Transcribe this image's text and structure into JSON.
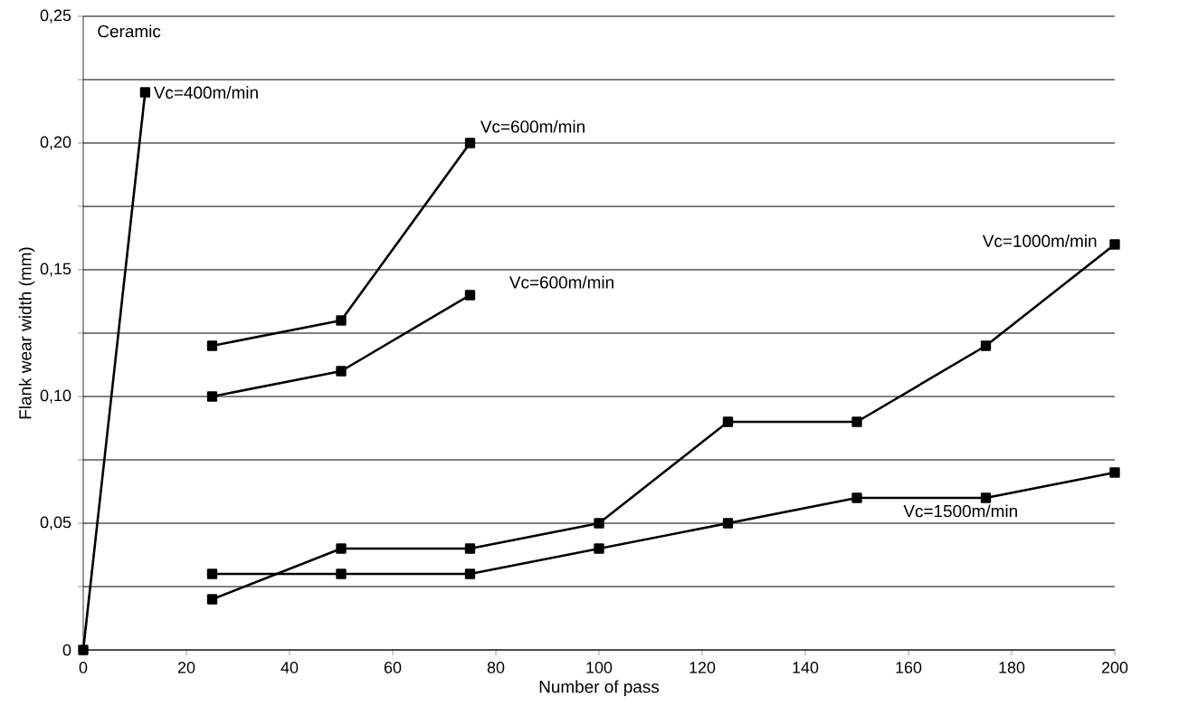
{
  "chart_data": {
    "type": "line",
    "xlabel": "Number of pass",
    "ylabel": "Flank wear width (mm)",
    "annotations": [
      "Ceramic"
    ],
    "series": [
      {
        "name": "Vc=400m/min",
        "color": "#000000",
        "x": [
          0,
          12
        ],
        "values": [
          0,
          0.22
        ]
      },
      {
        "name": "Vc=600m/min",
        "color": "#000000",
        "x": [
          25,
          50,
          75
        ],
        "values": [
          0.12,
          0.13,
          0.2
        ]
      },
      {
        "name": "Vc=600m/min",
        "color": "#000000",
        "x": [
          25,
          50,
          75
        ],
        "values": [
          0.1,
          0.11,
          0.14
        ]
      },
      {
        "name": "Vc=1000m/min",
        "color": "#000000",
        "x": [
          25,
          50,
          75,
          100,
          125,
          150,
          175,
          200
        ],
        "values": [
          0.02,
          0.04,
          0.04,
          0.05,
          0.09,
          0.09,
          0.12,
          0.16
        ]
      },
      {
        "name": "Vc=1500m/min",
        "color": "#000000",
        "x": [
          25,
          50,
          75,
          100,
          125,
          150,
          175,
          200
        ],
        "values": [
          0.03,
          0.03,
          0.03,
          0.04,
          0.05,
          0.06,
          0.06,
          0.07
        ]
      }
    ],
    "xlim": [
      0,
      200
    ],
    "xticks": [
      0,
      20,
      40,
      60,
      80,
      100,
      120,
      140,
      160,
      180,
      200
    ],
    "ylim": [
      0,
      0.25
    ],
    "yticks": [
      0,
      {
        "value": 0.025,
        "label": null
      },
      {
        "value": 0.05,
        "label": "0,05"
      },
      {
        "value": 0.075,
        "label": null
      },
      {
        "value": 0.1,
        "label": "0,10"
      },
      {
        "value": 0.125,
        "label": null
      },
      {
        "value": 0.15,
        "label": "0,15"
      },
      {
        "value": 0.175,
        "label": null
      },
      {
        "value": 0.2,
        "label": "0,20"
      },
      {
        "value": 0.225,
        "label": null
      },
      {
        "value": 0.25,
        "label": "0,25"
      }
    ],
    "grid": "y",
    "marker": "square",
    "line_style": "solid"
  }
}
